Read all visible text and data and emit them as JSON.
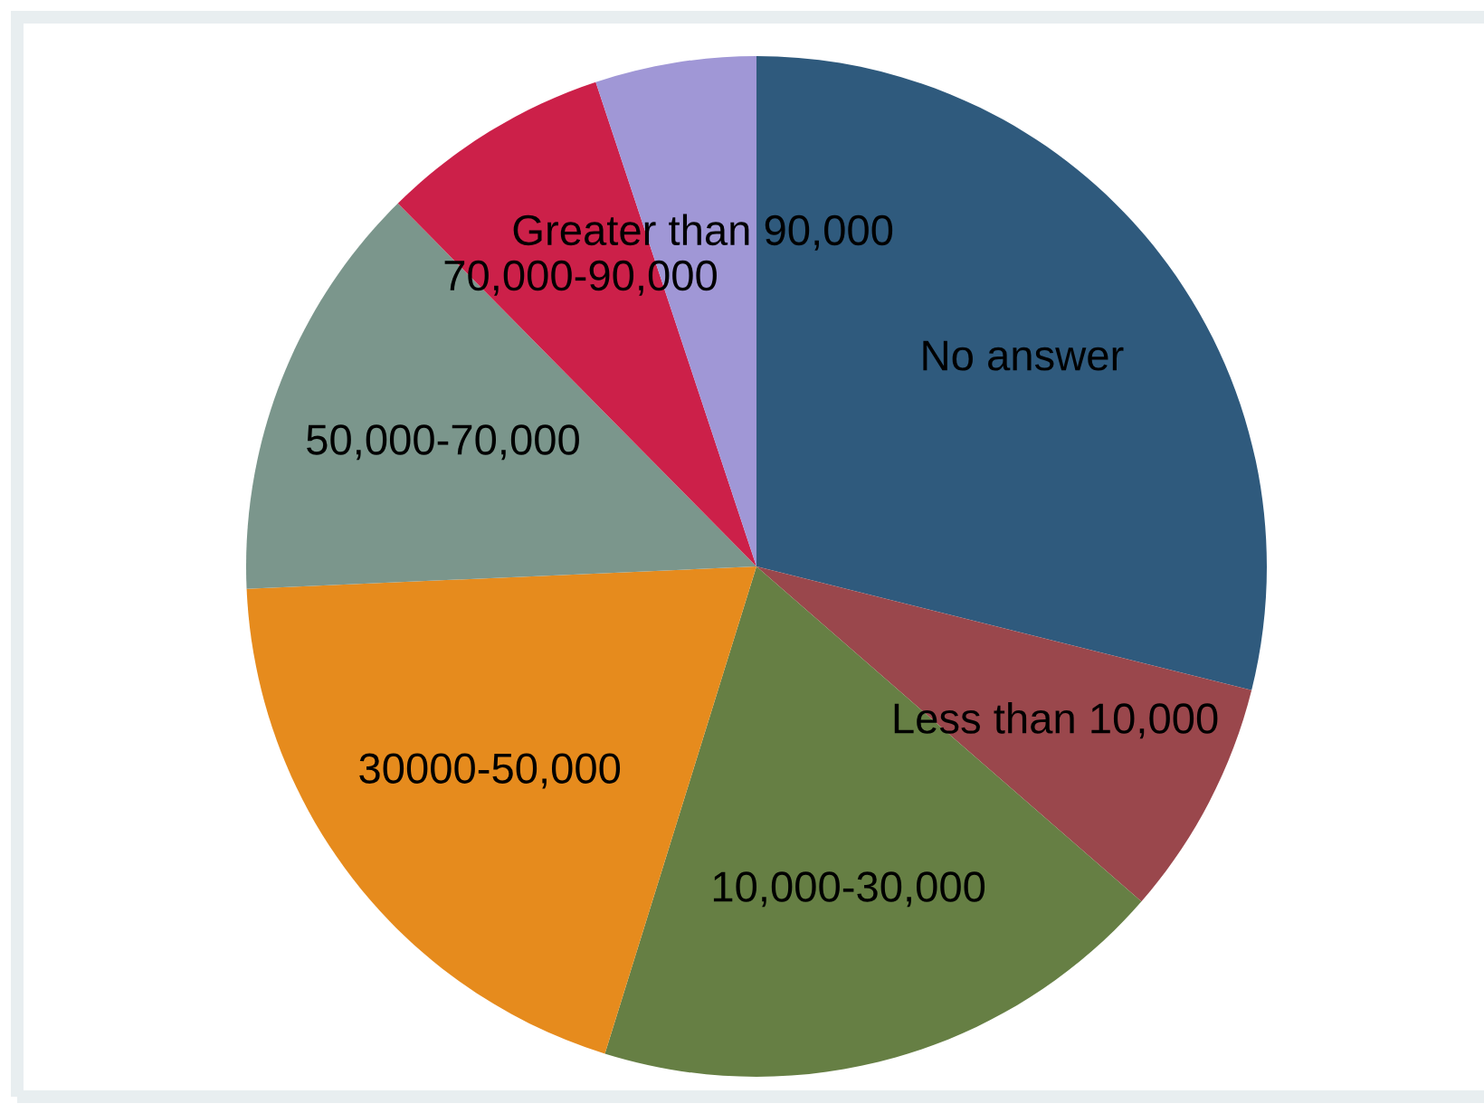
{
  "chart_data": {
    "type": "pie",
    "categories": [
      "No answer",
      "Less than 10,000",
      "10,000-30,000",
      "30000-50,000",
      "50,000-70,000",
      "70,000-90,000",
      "Greater than 90,000"
    ],
    "values": [
      28.9,
      7.5,
      18.4,
      19.5,
      13.3,
      7.3,
      5.1
    ],
    "colors": [
      "#2f5a7d",
      "#9a474c",
      "#667f44",
      "#e68b1d",
      "#7b968c",
      "#cc2049",
      "#a097d6"
    ]
  }
}
